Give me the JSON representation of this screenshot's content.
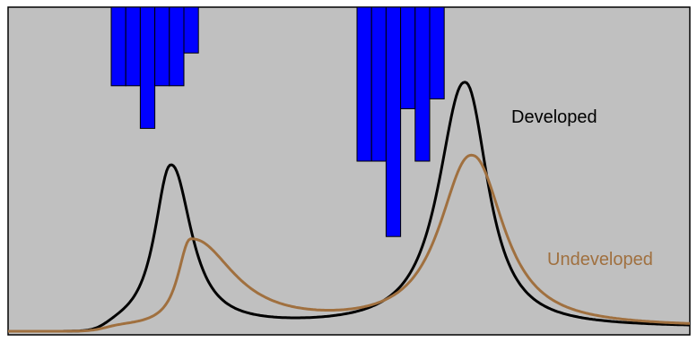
{
  "chart_data": {
    "type": "line",
    "title": "",
    "xlabel": "",
    "ylabel": "",
    "grid": false,
    "background": "#c0c0c0",
    "series": [
      {
        "name": "Developed",
        "color": "#000000",
        "peaks": [
          {
            "x": 0.239,
            "height": 0.52,
            "rise": 0.028,
            "fall": 0.035
          },
          {
            "x": 0.67,
            "height": 0.79,
            "rise": 0.045,
            "fall": 0.04
          }
        ],
        "baseline": 0.055
      },
      {
        "name": "Undeveloped",
        "color": "#a0703f",
        "peaks": [
          {
            "x": 0.268,
            "height": 0.28,
            "rise": 0.022,
            "fall": 0.075
          },
          {
            "x": 0.68,
            "height": 0.55,
            "rise": 0.055,
            "fall": 0.055
          }
        ],
        "baseline": 0.04
      }
    ],
    "rainfall": {
      "color": "#0000ff",
      "bursts": [
        {
          "bars": [
            0.24,
            0.24,
            0.37,
            0.24,
            0.24,
            0.14
          ]
        },
        {
          "bars": [
            0.47,
            0.47,
            0.7,
            0.31,
            0.47,
            0.28
          ]
        }
      ]
    }
  }
}
